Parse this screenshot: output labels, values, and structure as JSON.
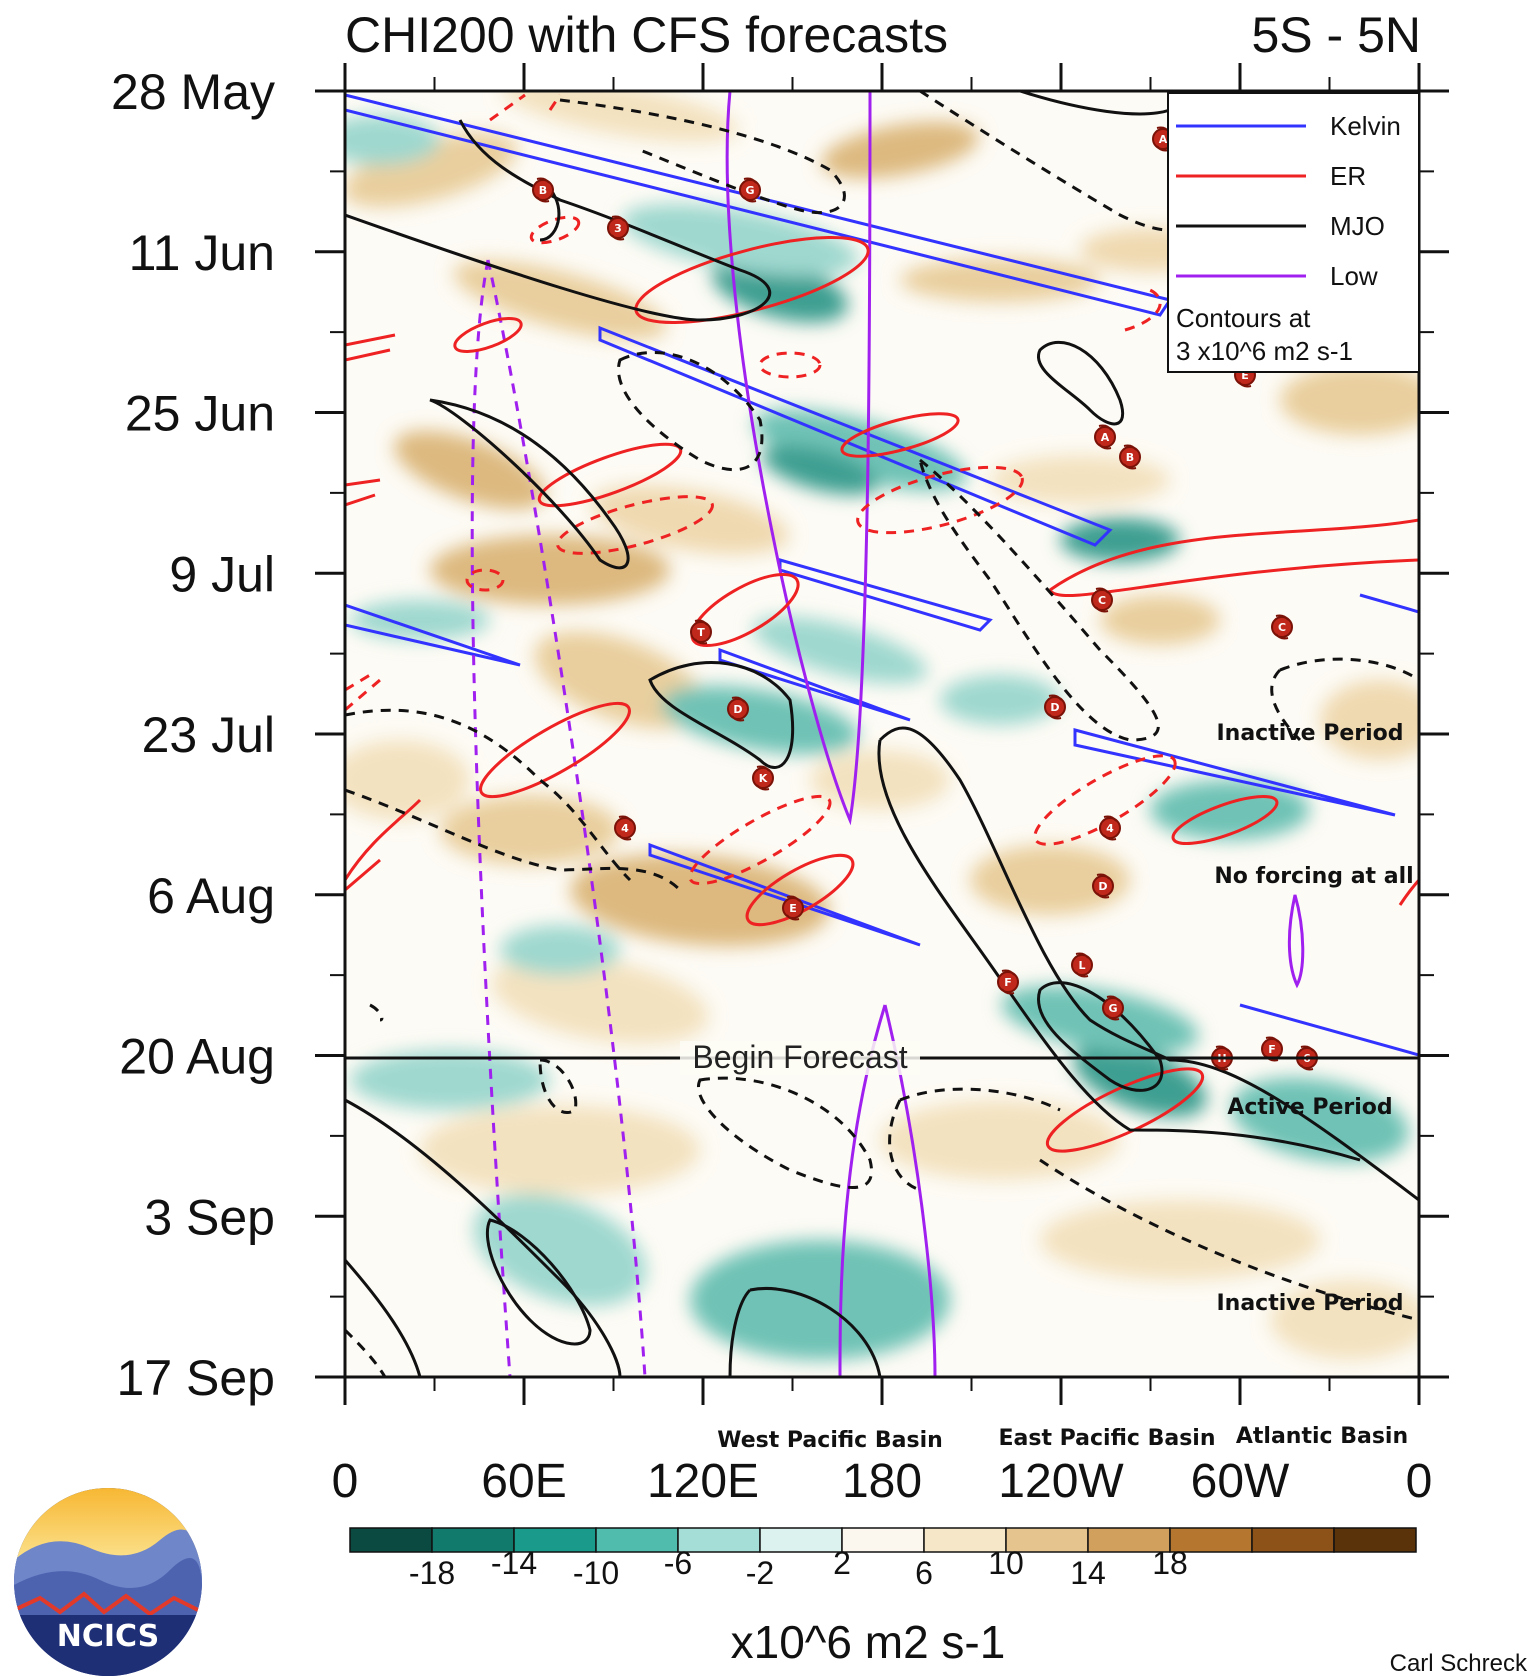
{
  "chart_data": {
    "type": "heatmap",
    "title": "CHI200 with CFS forecasts",
    "region": "5S - 5N",
    "x_axis": {
      "tick_labels": [
        "0",
        "60E",
        "120E",
        "180",
        "120W",
        "60W",
        "0"
      ],
      "range_deg_east": [
        0,
        360
      ],
      "basins": [
        "West Pacific Basin",
        "East Pacific Basin",
        "Atlantic Basin"
      ]
    },
    "y_axis": {
      "tick_labels": [
        "28 May",
        "11 Jun",
        "25 Jun",
        "9 Jul",
        "23 Jul",
        "6 Aug",
        "20 Aug",
        "3 Sep",
        "17 Sep"
      ],
      "reversed": true
    },
    "forecast_label": "Begin Forecast",
    "forecast_start": "20 Aug",
    "legend": {
      "items": [
        {
          "name": "Kelvin",
          "color": "#3333ff"
        },
        {
          "name": "ER",
          "color": "#ee2222"
        },
        {
          "name": "MJO",
          "color": "#111111"
        },
        {
          "name": "Low",
          "color": "#a020f0"
        }
      ],
      "note_line1": "Contours at",
      "note_line2": "3 x10^6 m2 s-1",
      "placement": "top-right"
    },
    "annotations": [
      "Inactive Period",
      "No forcing at all",
      "Active Period",
      "Inactive Period"
    ],
    "colorbar": {
      "ticks": [
        "-18",
        "-14",
        "-10",
        "-6",
        "-2",
        "2",
        "6",
        "10",
        "14",
        "18"
      ],
      "colors": [
        "#0a4a40",
        "#12796d",
        "#1a9a8b",
        "#4fbcae",
        "#a5ded6",
        "#dcf2ef",
        "#fbf7ee",
        "#f6e7c8",
        "#e6c48d",
        "#d0a05c",
        "#b5762f",
        "#8c5218",
        "#5a330b"
      ],
      "unit": "x10^6 m2 s-1"
    },
    "storm_markers": [
      "A",
      "B",
      "G",
      "3",
      "A",
      "B",
      "C",
      "C",
      "D",
      "T",
      "D",
      "4",
      "K",
      "4",
      "D",
      "E",
      "L",
      "F",
      "G",
      "H",
      "F",
      "6",
      "E"
    ],
    "credit": "Carl Schreck",
    "logo_text": "NCICS"
  }
}
